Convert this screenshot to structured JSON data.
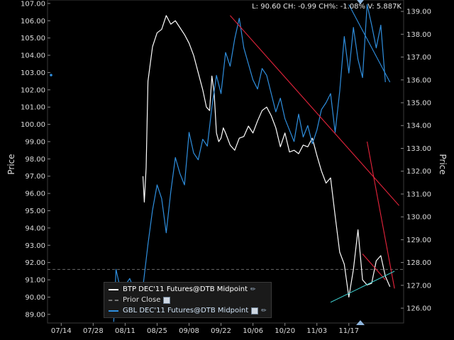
{
  "status_bar": "L: 90.60  CH: -0.99  CH%: -1.08%  V: 5.887K",
  "chart_data": {
    "type": "line",
    "left_axis": {
      "label": "Price",
      "range": [
        88.5,
        107.2
      ],
      "ticks": [
        "107.00",
        "106.00",
        "105.00",
        "104.00",
        "103.00",
        "102.00",
        "101.00",
        "100.00",
        "99.00",
        "98.00",
        "97.00",
        "96.00",
        "95.00",
        "94.00",
        "93.00",
        "92.00",
        "91.00",
        "90.00",
        "89.00"
      ]
    },
    "right_axis": {
      "label": "Price",
      "range": [
        125.35,
        139.5
      ],
      "ticks": [
        "139.00",
        "138.00",
        "137.00",
        "136.00",
        "135.00",
        "134.00",
        "133.00",
        "132.00",
        "131.00",
        "130.00",
        "129.00",
        "128.00",
        "127.00",
        "126.00"
      ]
    },
    "x_axis": {
      "labels": [
        "07/14",
        "07/28",
        "08/11",
        "08/25",
        "09/08",
        "09/22",
        "10/06",
        "10/20",
        "11/03",
        "11/17"
      ]
    },
    "prior_close": 91.6,
    "series": [
      {
        "name": "BTP DEC'11 Futures@DTB Midpoint",
        "color": "#ffffff",
        "axis": "left",
        "x": [
          20.9,
          21.2,
          21.6,
          22,
          23,
          24,
          25,
          25.5,
          26,
          27,
          28,
          29,
          30,
          31,
          32,
          33,
          34,
          34.8,
          35.5,
          36,
          36.5,
          37,
          37.5,
          38,
          38.5,
          39,
          40,
          41,
          42,
          43,
          44,
          45,
          46,
          47,
          48,
          49,
          50,
          51,
          52,
          53,
          54,
          55,
          56,
          57,
          58,
          59,
          60,
          61,
          62,
          63,
          64,
          65,
          66,
          67,
          68,
          69,
          70,
          71,
          72,
          73,
          74,
          75
        ],
        "values": [
          97.0,
          95.5,
          97.5,
          102.5,
          104.5,
          105.3,
          105.5,
          105.9,
          106.3,
          105.8,
          106,
          105.6,
          105.2,
          104.7,
          104,
          103,
          102.0,
          101,
          100.8,
          102.8,
          101.8,
          99.5,
          99,
          99.2,
          99.8,
          99.5,
          98.8,
          98.5,
          99.2,
          99.3,
          99.9,
          99.5,
          100.2,
          100.8,
          101,
          100.5,
          99.8,
          98.7,
          99.5,
          98.4,
          98.5,
          98.3,
          98.8,
          98.7,
          99.2,
          98.2,
          97.3,
          96.6,
          96.9,
          94.7,
          92.6,
          91.9,
          90.0,
          91.6,
          93.9,
          91.0,
          90.7,
          90.8,
          92.1,
          92.4,
          91.2,
          90.6
        ]
      },
      {
        "name": "GBL DEC'11 Futures@DTB Midpoint",
        "color": "#2f8fdf",
        "axis": "right",
        "x": [
          14.5,
          15,
          16,
          17,
          18,
          19,
          20,
          21,
          22,
          23,
          24,
          25,
          26,
          27,
          28,
          29,
          30,
          31,
          32,
          33,
          34,
          35,
          36,
          37,
          38,
          39,
          40,
          41,
          42,
          43,
          44,
          45,
          46,
          47,
          48,
          49,
          50,
          51,
          52,
          53,
          54,
          55,
          56,
          57,
          58,
          59,
          60,
          61,
          62,
          63,
          64,
          65,
          66,
          67,
          68,
          69,
          70,
          71,
          72,
          73,
          74
        ],
        "values": [
          125.4,
          127.7,
          126.8,
          127.0,
          127.3,
          126.8,
          126.0,
          127.1,
          128.8,
          130.3,
          131.4,
          130.8,
          129.3,
          131.1,
          132.6,
          131.9,
          131.4,
          133.7,
          132.8,
          132.5,
          133.4,
          133.1,
          134.8,
          136.2,
          135.4,
          137.2,
          136.6,
          137.8,
          138.7,
          137.4,
          136.7,
          136.0,
          135.6,
          136.5,
          136.2,
          135.4,
          134.6,
          135.2,
          134.3,
          133.8,
          133.3,
          134.5,
          133.5,
          134.0,
          133.2,
          133.8,
          134.7,
          135.0,
          135.4,
          133.7,
          135.5,
          137.9,
          136.3,
          138.3,
          136.9,
          136.1,
          139.3,
          138.4,
          137.4,
          138.4,
          135.9
        ]
      }
    ],
    "trendlines": [
      {
        "axis": "left",
        "color": "#e8243c",
        "x": [
          40,
          77
        ],
        "values": [
          106.3,
          95.3
        ]
      },
      {
        "axis": "left",
        "color": "#e8243c",
        "x": [
          70,
          76
        ],
        "values": [
          99.0,
          90.5
        ]
      },
      {
        "axis": "left",
        "color": "#e8243c",
        "x": [
          69,
          74
        ],
        "values": [
          92.5,
          91.0
        ]
      },
      {
        "axis": "right",
        "color": "#2f8fdf",
        "x": [
          66,
          75
        ],
        "values": [
          139.3,
          135.9
        ]
      },
      {
        "axis": "left",
        "color": "#3bc6c6",
        "x": [
          62,
          76
        ],
        "values": [
          89.7,
          91.5
        ]
      }
    ],
    "legend": {
      "placement": "bottom-left",
      "items": [
        {
          "label": "BTP DEC'11 Futures@DTB Midpoint",
          "color": "#ffffff",
          "style": "solid"
        },
        {
          "label": "Prior Close",
          "color": "#777777",
          "style": "dashed"
        },
        {
          "label": "GBL DEC'11 Futures@DTB Midpoint",
          "color": "#2f8fdf",
          "style": "solid"
        }
      ]
    }
  }
}
